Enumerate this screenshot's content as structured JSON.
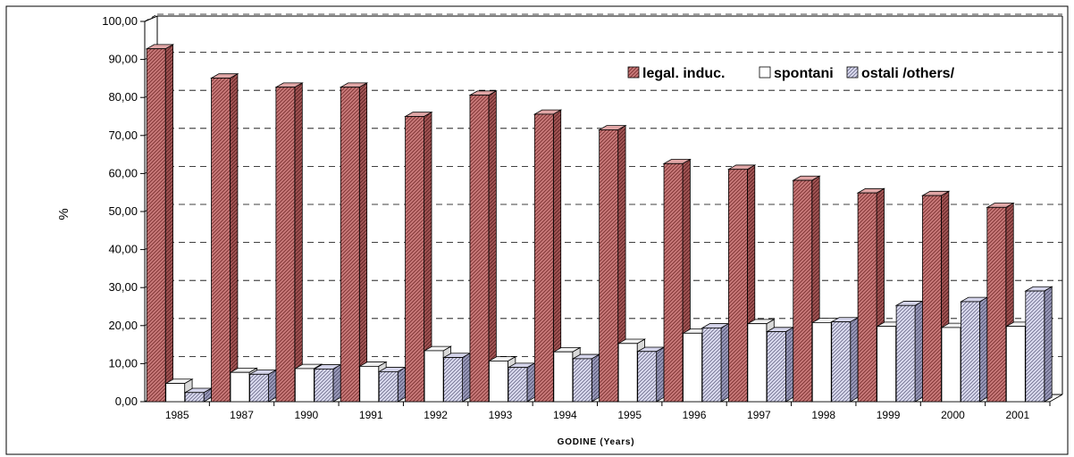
{
  "chart_data": {
    "type": "bar",
    "title": "",
    "xlabel": "GODINE (Years)",
    "ylabel": "%",
    "ylim": [
      0,
      100
    ],
    "y_ticks": [
      "0,00",
      "10,00",
      "20,00",
      "30,00",
      "40,00",
      "50,00",
      "60,00",
      "70,00",
      "80,00",
      "90,00",
      "100,00"
    ],
    "grid": true,
    "legend_position": "top-right",
    "categories": [
      "1985",
      "1987",
      "1990",
      "1991",
      "1992",
      "1993",
      "1994",
      "1995",
      "1996",
      "1997",
      "1998",
      "1999",
      "2000",
      "2001"
    ],
    "series": [
      {
        "name": "legal. induc.",
        "color": "#c97a7a",
        "values": [
          92.8,
          85.1,
          82.7,
          82.7,
          75.0,
          80.6,
          75.6,
          71.5,
          62.6,
          61.1,
          58.2,
          54.9,
          54.2,
          51.1
        ]
      },
      {
        "name": "spontani",
        "color": "#ffffff",
        "values": [
          4.8,
          7.7,
          8.7,
          9.3,
          13.4,
          10.7,
          13.1,
          15.3,
          18.0,
          20.5,
          20.8,
          19.8,
          19.5,
          19.8
        ]
      },
      {
        "name": "ostali /others/",
        "color": "#c4c4e0",
        "values": [
          2.4,
          7.2,
          8.6,
          7.9,
          11.6,
          9.0,
          11.3,
          13.2,
          19.4,
          18.4,
          21.0,
          25.3,
          26.3,
          29.1
        ]
      }
    ]
  }
}
